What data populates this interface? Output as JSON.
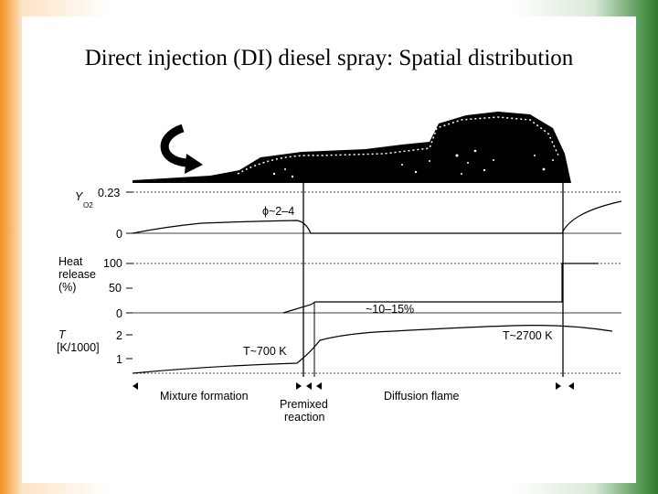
{
  "slide": {
    "title": "Direct injection (DI) diesel spray: Spatial distribution"
  },
  "chart": {
    "y_o2": {
      "symbol": "Y",
      "subscript": "O2",
      "tick_top": "0.23",
      "tick_zero": "0",
      "phi_label": "ϕ~2–4"
    },
    "heat": {
      "label_line1": "Heat",
      "label_line2": "release",
      "label_line3": "(%)",
      "tick_100": "100",
      "tick_50": "50",
      "tick_0": "0",
      "pct_label": "~10–15%"
    },
    "temp": {
      "symbol": "T",
      "unit": "[K/1000]",
      "tick_2": "2",
      "tick_1": "1",
      "low_label": "T~700 K",
      "high_label": "T~2700 K"
    },
    "phases": {
      "mixture": "Mixture formation",
      "premixed_1": "Premixed",
      "premixed_2": "reaction",
      "diffusion": "Diffusion flame"
    }
  },
  "icons": {
    "swirl": "curved-arrow-icon"
  },
  "colors": {
    "left_border": "#f7941d",
    "right_border": "#2f7a2f",
    "ink": "#000000"
  }
}
